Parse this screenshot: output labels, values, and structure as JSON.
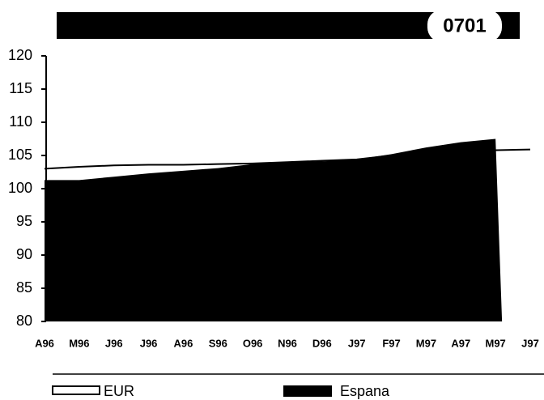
{
  "chart_data": {
    "type": "area",
    "title": "0701",
    "categories": [
      "A96",
      "M96",
      "J96",
      "J96",
      "A96",
      "S96",
      "O96",
      "N96",
      "D96",
      "J97",
      "F97",
      "M97",
      "A97",
      "M97",
      "J97"
    ],
    "series": [
      {
        "name": "Espana",
        "type": "area",
        "color": "#000000",
        "values": [
          101.3,
          101.3,
          101.8,
          102.3,
          102.7,
          103.1,
          103.7,
          104.0,
          104.1,
          104.4,
          105.2,
          106.2,
          107.0,
          107.5,
          null
        ]
      },
      {
        "name": "EUR",
        "type": "line",
        "color": "#000000",
        "values": [
          103.0,
          103.3,
          103.5,
          103.6,
          103.6,
          103.7,
          103.8,
          104.0,
          104.2,
          104.4,
          105.0,
          105.5,
          105.7,
          105.8,
          105.9
        ]
      }
    ],
    "ylim": [
      80,
      120
    ],
    "yticks": [
      80,
      85,
      90,
      95,
      100,
      105,
      110,
      115,
      120
    ],
    "grid": false
  }
}
